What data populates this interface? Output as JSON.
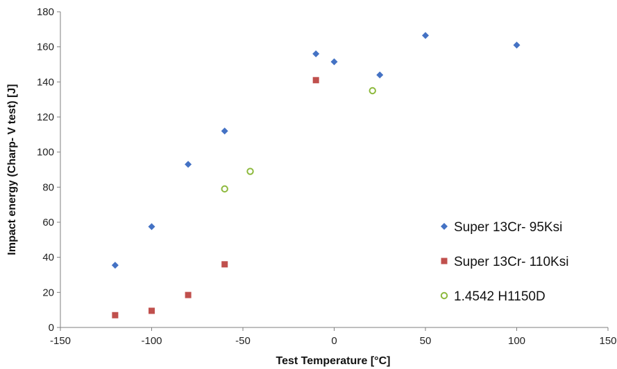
{
  "chart_data": {
    "type": "scatter",
    "title": "",
    "xlabel": "Test Temperature [°C]",
    "ylabel": "Impact energy (Charp- V test) [J]",
    "xlim": [
      -150,
      150
    ],
    "ylim": [
      0,
      180
    ],
    "xticks": [
      -150,
      -100,
      -50,
      0,
      50,
      100,
      150
    ],
    "yticks": [
      0,
      20,
      40,
      60,
      80,
      100,
      120,
      140,
      160,
      180
    ],
    "xtick_labels": [
      "-150",
      "-100",
      "-50",
      "0",
      "50",
      "100",
      "150"
    ],
    "ytick_labels": [
      "0",
      "20",
      "40",
      "60",
      "80",
      "100",
      "120",
      "140",
      "160",
      "180"
    ],
    "grid": false,
    "legend_position": "right",
    "series": [
      {
        "name": "Super 13Cr- 95Ksi",
        "marker": "diamond",
        "color": "#4472C4",
        "points": [
          {
            "x": -120,
            "y": 35.5
          },
          {
            "x": -100,
            "y": 57.5
          },
          {
            "x": -80,
            "y": 93
          },
          {
            "x": -60,
            "y": 112
          },
          {
            "x": -10,
            "y": 156
          },
          {
            "x": 0,
            "y": 151.5
          },
          {
            "x": 25,
            "y": 144
          },
          {
            "x": 50,
            "y": 166.5
          },
          {
            "x": 100,
            "y": 161
          }
        ]
      },
      {
        "name": "Super 13Cr- 110Ksi",
        "marker": "square",
        "color": "#C0504D",
        "points": [
          {
            "x": -120,
            "y": 7
          },
          {
            "x": -100,
            "y": 9.5
          },
          {
            "x": -80,
            "y": 18.5
          },
          {
            "x": -60,
            "y": 36
          },
          {
            "x": -10,
            "y": 141
          }
        ]
      },
      {
        "name": "1.4542 H1150D",
        "marker": "circle-open",
        "color": "#8DB93D",
        "points": [
          {
            "x": -60,
            "y": 79
          },
          {
            "x": -46,
            "y": 89
          },
          {
            "x": 21,
            "y": 135
          }
        ]
      }
    ]
  }
}
